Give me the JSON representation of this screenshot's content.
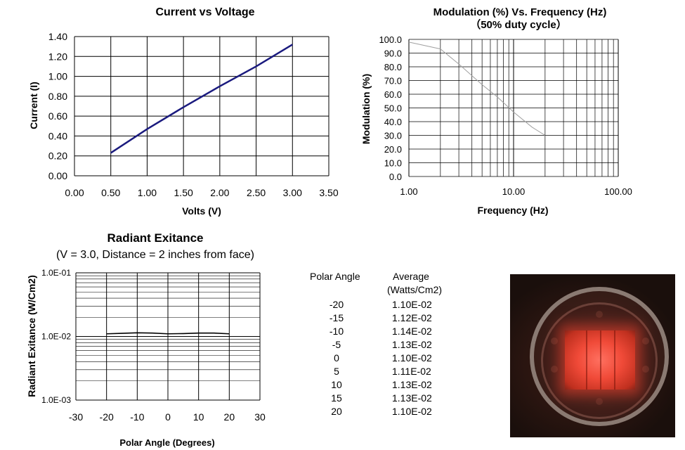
{
  "chart_data": [
    {
      "type": "line",
      "title": "Current vs Voltage",
      "xlabel": "Volts (V)",
      "ylabel": "Current (I)",
      "xlim": [
        0,
        3.5
      ],
      "ylim": [
        0,
        1.4
      ],
      "xticks": [
        "0.00",
        "0.50",
        "1.00",
        "1.50",
        "2.00",
        "2.50",
        "3.00",
        "3.50"
      ],
      "yticks": [
        "0.00",
        "0.20",
        "0.40",
        "0.60",
        "0.80",
        "1.00",
        "1.20",
        "1.40"
      ],
      "grid": true,
      "series": [
        {
          "color": "#1a1a7e",
          "x": [
            0.5,
            1.0,
            1.5,
            2.0,
            2.5,
            3.0
          ],
          "y": [
            0.23,
            0.47,
            0.69,
            0.9,
            1.1,
            1.32
          ]
        }
      ]
    },
    {
      "type": "line",
      "title": "Modulation (%) Vs. Frequency (Hz)",
      "subtitle": "（50% duty cycle）",
      "xlabel": "Frequency (Hz)",
      "ylabel": "Modulation (%)",
      "xscale": "log",
      "xlim": [
        1,
        100
      ],
      "ylim": [
        0,
        100
      ],
      "xticks": [
        "1.00",
        "10.00",
        "100.00"
      ],
      "yticks": [
        "0.0",
        "10.0",
        "20.0",
        "30.0",
        "40.0",
        "50.0",
        "60.0",
        "70.0",
        "80.0",
        "90.0",
        "100.0"
      ],
      "grid": true,
      "series": [
        {
          "color": "#a0a0a0",
          "x": [
            1,
            2,
            3,
            5,
            7,
            10,
            15,
            20
          ],
          "y": [
            98,
            93,
            82,
            67,
            58,
            47,
            36,
            30
          ]
        }
      ]
    },
    {
      "type": "line",
      "title": "Radiant Exitance",
      "subtitle": "(V = 3.0, Distance = 2 inches from face)",
      "xlabel": "Polar Angle (Degrees)",
      "ylabel": "Radiant Exitance (W/Cm2)",
      "yscale": "log",
      "xlim": [
        -30,
        30
      ],
      "ylim": [
        0.001,
        0.1
      ],
      "xticks": [
        "-30",
        "-20",
        "-10",
        "0",
        "10",
        "20",
        "30"
      ],
      "yticks": [
        "1.0E-03",
        "1.0E-02",
        "1.0E-01"
      ],
      "grid": true,
      "series": [
        {
          "color": "#000000",
          "x": [
            -20,
            -15,
            -10,
            -5,
            0,
            5,
            10,
            15,
            20
          ],
          "y": [
            0.011,
            0.0112,
            0.0114,
            0.0113,
            0.011,
            0.0111,
            0.0113,
            0.0113,
            0.011
          ]
        }
      ]
    },
    {
      "type": "table",
      "headers": [
        "Polar Angle",
        "Average",
        "(Watts/Cm2)"
      ],
      "rows": [
        [
          "-20",
          "1.10E-02"
        ],
        [
          "-15",
          "1.12E-02"
        ],
        [
          "-10",
          "1.14E-02"
        ],
        [
          "-5",
          "1.13E-02"
        ],
        [
          "0",
          "1.10E-02"
        ],
        [
          "5",
          "1.11E-02"
        ],
        [
          "10",
          "1.13E-02"
        ],
        [
          "15",
          "1.13E-02"
        ],
        [
          "20",
          "1.10E-02"
        ]
      ]
    }
  ]
}
